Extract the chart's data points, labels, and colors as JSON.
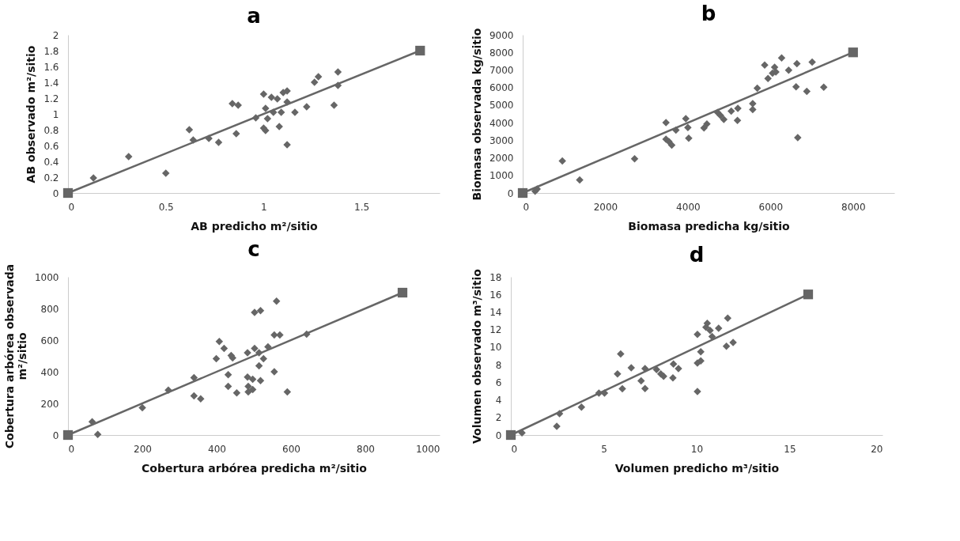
{
  "chart_data": [
    {
      "type": "scatter",
      "title": "a",
      "xlabel": "AB predicho m²/sitio",
      "ylabel": "AB observado m²/sitio",
      "xlim": [
        0,
        1.9
      ],
      "xticks": [
        0,
        0.5,
        1,
        1.5
      ],
      "ylim": [
        0,
        2
      ],
      "yticks": [
        0,
        0.2,
        0.4,
        0.6,
        0.8,
        1,
        1.2,
        1.4,
        1.6,
        1.8,
        2
      ],
      "grid": false,
      "series": [
        {
          "type": "scatter",
          "marker": "diamond",
          "color": "#666666",
          "x": [
            0.13,
            0.31,
            0.5,
            0.62,
            0.64,
            0.72,
            0.77,
            0.84,
            0.87,
            0.86,
            0.96,
            1.0,
            1.0,
            1.01,
            1.01,
            1.02,
            1.04,
            1.05,
            1.07,
            1.08,
            1.09,
            1.1,
            1.12,
            1.12,
            1.12,
            1.16,
            1.22,
            1.26,
            1.28,
            1.36,
            1.38,
            1.38
          ],
          "values": [
            0.19,
            0.46,
            0.25,
            0.8,
            0.67,
            0.69,
            0.64,
            1.13,
            1.11,
            0.75,
            0.95,
            1.25,
            0.82,
            0.79,
            1.07,
            0.94,
            1.21,
            1.02,
            1.19,
            0.84,
            1.02,
            1.27,
            1.29,
            0.61,
            1.15,
            1.02,
            1.09,
            1.4,
            1.47,
            1.11,
            1.53,
            1.36
          ]
        },
        {
          "type": "line",
          "marker": "square",
          "line_style": "solid",
          "color": "#666666",
          "x": [
            0,
            1.8
          ],
          "values": [
            0,
            1.8
          ]
        }
      ]
    },
    {
      "type": "scatter",
      "title": "b",
      "xlabel": "Biomasa predicha kg/sitio",
      "ylabel": "Biomasa observada kg/sitio",
      "xlim": [
        0,
        9000
      ],
      "xticks": [
        0,
        2000,
        4000,
        6000,
        8000
      ],
      "ylim": [
        0,
        9000
      ],
      "yticks": [
        0,
        1000,
        2000,
        3000,
        4000,
        5000,
        6000,
        7000,
        8000,
        9000
      ],
      "grid": false,
      "series": [
        {
          "type": "scatter",
          "marker": "diamond",
          "color": "#666666",
          "x": [
            300,
            350,
            960,
            1380,
            2710,
            3470,
            3470,
            3540,
            3610,
            3710,
            3950,
            4000,
            4020,
            4390,
            4460,
            4720,
            4790,
            4870,
            5050,
            5210,
            5200,
            5570,
            5570,
            5680,
            5860,
            5940,
            6050,
            6100,
            6130,
            6270,
            6440,
            6620,
            6640,
            6660,
            6880,
            7010,
            7290
          ],
          "values": [
            100,
            220,
            1820,
            740,
            1950,
            4010,
            3060,
            2930,
            2720,
            3580,
            4230,
            3720,
            3120,
            3700,
            3930,
            4580,
            4410,
            4180,
            4660,
            4820,
            4130,
            5090,
            4750,
            5960,
            7280,
            6510,
            6820,
            7160,
            6880,
            7680,
            6990,
            6040,
            7360,
            3150,
            5780,
            7450,
            6020
          ]
        },
        {
          "type": "line",
          "marker": "square",
          "line_style": "solid",
          "color": "#666666",
          "x": [
            0,
            8000
          ],
          "values": [
            0,
            8000
          ]
        }
      ]
    },
    {
      "type": "scatter",
      "title": "c",
      "xlabel": "Cobertura arbórea predicha m²/sitio",
      "ylabel": [
        "Cobertura arbórea observada",
        "m²/sitio"
      ],
      "xlim": [
        0,
        1000
      ],
      "xticks": [
        0,
        200,
        400,
        600,
        800,
        1000
      ],
      "ylim": [
        0,
        1000
      ],
      "yticks": [
        0,
        200,
        400,
        600,
        800,
        1000
      ],
      "grid": false,
      "series": [
        {
          "type": "scatter",
          "marker": "diamond",
          "color": "#666666",
          "x": [
            65,
            80,
            200,
            270,
            339,
            339,
            357,
            399,
            407,
            420,
            431,
            431,
            439,
            443,
            454,
            483,
            483,
            485,
            485,
            497,
            497,
            502,
            502,
            514,
            514,
            518,
            518,
            526,
            538,
            555,
            555,
            561,
            570,
            590,
            642
          ],
          "values": [
            84,
            4,
            173,
            284,
            362,
            247,
            229,
            483,
            591,
            548,
            381,
            307,
            502,
            487,
            266,
            520,
            366,
            307,
            273,
            353,
            288,
            775,
            548,
            520,
            437,
            786,
            344,
            483,
            558,
            400,
            632,
            846,
            632,
            273,
            638
          ]
        },
        {
          "type": "line",
          "marker": "square",
          "line_style": "solid",
          "color": "#666666",
          "x": [
            0,
            900
          ],
          "values": [
            0,
            900
          ]
        }
      ]
    },
    {
      "type": "scatter",
      "title": "d",
      "xlabel": "Volumen predicho m³/sitio",
      "ylabel": "Volumen observado m³/sitio",
      "xlim": [
        0,
        20
      ],
      "xticks": [
        0,
        5,
        10,
        15,
        20
      ],
      "ylim": [
        0,
        18
      ],
      "yticks": [
        0,
        2,
        4,
        6,
        8,
        10,
        12,
        14,
        16,
        18
      ],
      "grid": false,
      "series": [
        {
          "type": "scatter",
          "marker": "diamond",
          "color": "#666666",
          "x": [
            0.6,
            2.47,
            2.62,
            3.8,
            4.74,
            5.04,
            5.74,
            5.91,
            6.0,
            6.48,
            7.01,
            7.22,
            7.22,
            7.84,
            8.07,
            8.22,
            8.72,
            8.75,
            9.02,
            10.04,
            10.04,
            10.04,
            10.22,
            10.22,
            10.5,
            10.57,
            10.72,
            10.83,
            11.18,
            11.6,
            11.67,
            11.96
          ],
          "values": [
            0.24,
            1.0,
            2.44,
            3.17,
            4.77,
            4.77,
            6.96,
            9.23,
            5.26,
            7.66,
            6.16,
            5.29,
            7.56,
            7.45,
            6.96,
            6.69,
            6.51,
            8.08,
            7.56,
            4.94,
            11.46,
            8.18,
            8.43,
            9.47,
            12.26,
            12.71,
            11.91,
            11.21,
            12.15,
            10.1,
            13.3,
            10.52
          ]
        },
        {
          "type": "line",
          "marker": "square",
          "line_style": "solid",
          "color": "#666666",
          "x": [
            0,
            16
          ],
          "values": [
            0,
            16
          ]
        }
      ]
    }
  ]
}
